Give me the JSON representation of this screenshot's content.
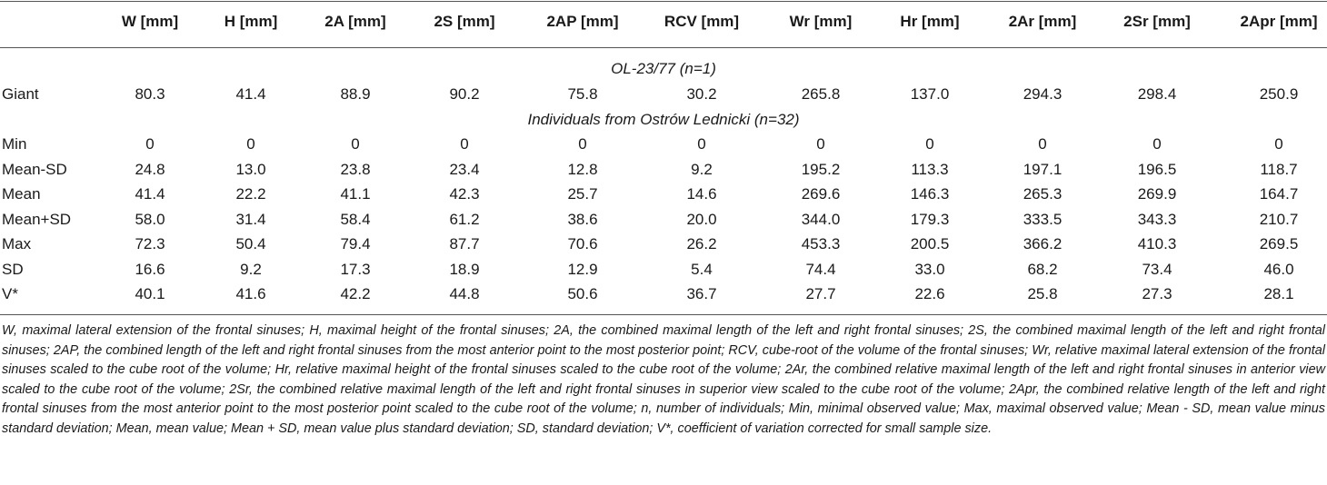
{
  "columns": [
    "",
    "W [mm]",
    "H [mm]",
    "2A [mm]",
    "2S [mm]",
    "2AP [mm]",
    "RCV [mm]",
    "Wr [mm]",
    "Hr [mm]",
    "2Ar [mm]",
    "2Sr [mm]",
    "2Apr [mm]"
  ],
  "group1": {
    "label": "OL-23/77 (n=1)",
    "rows": [
      {
        "label": "Giant",
        "values": [
          "80.3",
          "41.4",
          "88.9",
          "90.2",
          "75.8",
          "30.2",
          "265.8",
          "137.0",
          "294.3",
          "298.4",
          "250.9"
        ]
      }
    ]
  },
  "group2": {
    "label": "Individuals from Ostrów Lednicki (n=32)",
    "rows": [
      {
        "label": "Min",
        "values": [
          "0",
          "0",
          "0",
          "0",
          "0",
          "0",
          "0",
          "0",
          "0",
          "0",
          "0"
        ]
      },
      {
        "label": "Mean-SD",
        "values": [
          "24.8",
          "13.0",
          "23.8",
          "23.4",
          "12.8",
          "9.2",
          "195.2",
          "113.3",
          "197.1",
          "196.5",
          "118.7"
        ]
      },
      {
        "label": "Mean",
        "values": [
          "41.4",
          "22.2",
          "41.1",
          "42.3",
          "25.7",
          "14.6",
          "269.6",
          "146.3",
          "265.3",
          "269.9",
          "164.7"
        ]
      },
      {
        "label": "Mean+SD",
        "values": [
          "58.0",
          "31.4",
          "58.4",
          "61.2",
          "38.6",
          "20.0",
          "344.0",
          "179.3",
          "333.5",
          "343.3",
          "210.7"
        ]
      },
      {
        "label": "Max",
        "values": [
          "72.3",
          "50.4",
          "79.4",
          "87.7",
          "70.6",
          "26.2",
          "453.3",
          "200.5",
          "366.2",
          "410.3",
          "269.5"
        ]
      },
      {
        "label": "SD",
        "values": [
          "16.6",
          "9.2",
          "17.3",
          "18.9",
          "12.9",
          "5.4",
          "74.4",
          "33.0",
          "68.2",
          "73.4",
          "46.0"
        ]
      },
      {
        "label": "V*",
        "values": [
          "40.1",
          "41.6",
          "42.2",
          "44.8",
          "50.6",
          "36.7",
          "27.7",
          "22.6",
          "25.8",
          "27.3",
          "28.1"
        ]
      }
    ]
  },
  "footnote": "W, maximal lateral extension of the frontal sinuses; H, maximal height of the frontal sinuses; 2A, the combined maximal length of the left and right frontal sinuses; 2S, the combined maximal length of the left and right frontal sinuses; 2AP, the combined length of the left and right frontal sinuses from the most anterior point to the most posterior point; RCV, cube-root of the volume of the frontal sinuses; Wr, relative maximal lateral extension of the frontal sinuses scaled to the cube root of the volume; Hr, relative maximal height of the frontal sinuses scaled to the cube root of the volume; 2Ar, the combined relative maximal length of the left and right frontal sinuses in anterior view scaled to the cube root of the volume; 2Sr, the combined relative maximal length of the left and right frontal sinuses in superior view scaled to the cube root of the volume; 2Apr, the combined relative length of the left and right frontal sinuses from the most anterior point to the most posterior point scaled to the cube root of the volume; n, number of individuals; Min, minimal observed value; Max, maximal observed value; Mean - SD, mean value minus standard deviation; Mean, mean value; Mean + SD, mean value plus standard deviation; SD, standard deviation; V*, coefficient of variation corrected for small sample size."
}
